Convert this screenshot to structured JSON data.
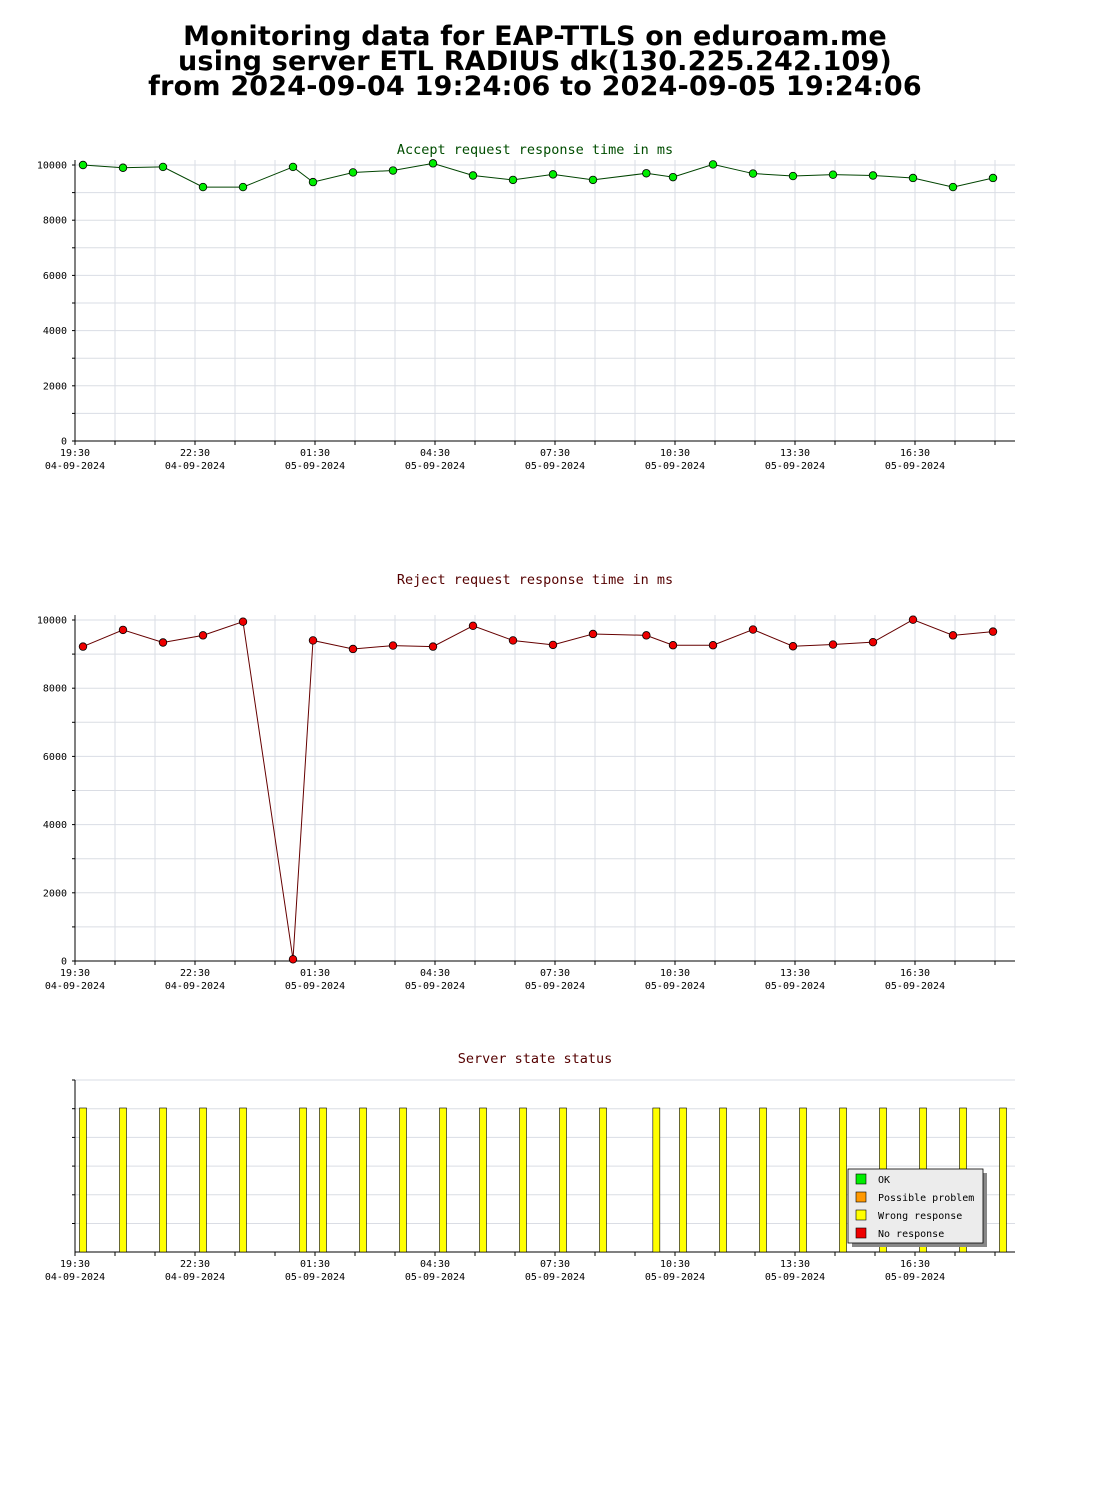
{
  "title": {
    "line1": "Monitoring data for EAP-TTLS on eduroam.me",
    "line2": "using server ETL RADIUS dk(130.225.242.109)",
    "line3": "from 2024-09-04 19:24:06 to 2024-09-05 19:24:06"
  },
  "colors": {
    "accept_line": "#004400",
    "accept_marker": "#00ee00",
    "reject_line": "#660000",
    "reject_marker": "#ee0000",
    "bar": "#ffff00",
    "title_green": "#004d00",
    "title_red": "#550000"
  },
  "chart_data": [
    {
      "type": "line",
      "title": "Accept request response time in ms",
      "ylim": [
        0,
        10000
      ],
      "yticks": [
        "0",
        "2000",
        "4000",
        "6000",
        "8000",
        "10000"
      ],
      "x_ticks": [
        {
          "time": "19:30",
          "date": "04-09-2024"
        },
        {
          "time": "22:30",
          "date": "04-09-2024"
        },
        {
          "time": "01:30",
          "date": "05-09-2024"
        },
        {
          "time": "04:30",
          "date": "05-09-2024"
        },
        {
          "time": "07:30",
          "date": "05-09-2024"
        },
        {
          "time": "10:30",
          "date": "05-09-2024"
        },
        {
          "time": "13:30",
          "date": "05-09-2024"
        },
        {
          "time": "16:30",
          "date": "05-09-2024"
        }
      ],
      "x": [
        "2024-09-04 19:42",
        "2024-09-04 20:42",
        "2024-09-04 21:42",
        "2024-09-04 22:42",
        "2024-09-04 23:42",
        "2024-09-05 00:57",
        "2024-09-05 01:27",
        "2024-09-05 02:27",
        "2024-09-05 03:27",
        "2024-09-05 04:27",
        "2024-09-05 05:27",
        "2024-09-05 06:27",
        "2024-09-05 07:27",
        "2024-09-05 08:27",
        "2024-09-05 09:47",
        "2024-09-05 10:27",
        "2024-09-05 11:27",
        "2024-09-05 12:27",
        "2024-09-05 13:27",
        "2024-09-05 14:27",
        "2024-09-05 15:27",
        "2024-09-05 16:27",
        "2024-09-05 17:27",
        "2024-09-05 18:27"
      ],
      "values": [
        10000,
        9900,
        9930,
        9200,
        9200,
        9930,
        9380,
        9730,
        9800,
        10060,
        9620,
        9460,
        9660,
        9460,
        9700,
        9560,
        10020,
        9690,
        9600,
        9650,
        9620,
        9530,
        9200,
        9530
      ]
    },
    {
      "type": "line",
      "title": "Reject request response time in ms",
      "ylim": [
        0,
        10000
      ],
      "yticks": [
        "0",
        "2000",
        "4000",
        "6000",
        "8000",
        "10000"
      ],
      "x_ticks": [
        {
          "time": "19:30",
          "date": "04-09-2024"
        },
        {
          "time": "22:30",
          "date": "04-09-2024"
        },
        {
          "time": "01:30",
          "date": "05-09-2024"
        },
        {
          "time": "04:30",
          "date": "05-09-2024"
        },
        {
          "time": "07:30",
          "date": "05-09-2024"
        },
        {
          "time": "10:30",
          "date": "05-09-2024"
        },
        {
          "time": "13:30",
          "date": "05-09-2024"
        },
        {
          "time": "16:30",
          "date": "05-09-2024"
        }
      ],
      "x": [
        "2024-09-04 19:42",
        "2024-09-04 20:42",
        "2024-09-04 21:42",
        "2024-09-04 22:42",
        "2024-09-04 23:42",
        "2024-09-05 00:57",
        "2024-09-05 01:27",
        "2024-09-05 02:27",
        "2024-09-05 03:27",
        "2024-09-05 04:27",
        "2024-09-05 05:27",
        "2024-09-05 06:27",
        "2024-09-05 07:27",
        "2024-09-05 08:27",
        "2024-09-05 09:47",
        "2024-09-05 10:27",
        "2024-09-05 11:27",
        "2024-09-05 12:27",
        "2024-09-05 13:27",
        "2024-09-05 14:27",
        "2024-09-05 15:27",
        "2024-09-05 16:27",
        "2024-09-05 17:27",
        "2024-09-05 18:27"
      ],
      "values": [
        9220,
        9710,
        9340,
        9550,
        9950,
        50,
        9400,
        9150,
        9250,
        9220,
        9830,
        9400,
        9270,
        9590,
        9550,
        9260,
        9260,
        9720,
        9230,
        9280,
        9350,
        10010,
        9550,
        9660
      ]
    },
    {
      "type": "bar",
      "title": "Server state status",
      "x_ticks": [
        {
          "time": "19:30",
          "date": "04-09-2024"
        },
        {
          "time": "22:30",
          "date": "04-09-2024"
        },
        {
          "time": "01:30",
          "date": "05-09-2024"
        },
        {
          "time": "04:30",
          "date": "05-09-2024"
        },
        {
          "time": "07:30",
          "date": "05-09-2024"
        },
        {
          "time": "10:30",
          "date": "05-09-2024"
        },
        {
          "time": "13:30",
          "date": "05-09-2024"
        },
        {
          "time": "16:30",
          "date": "05-09-2024"
        }
      ],
      "x": [
        "2024-09-04 19:42",
        "2024-09-04 20:42",
        "2024-09-04 21:42",
        "2024-09-04 22:42",
        "2024-09-04 23:42",
        "2024-09-05 01:12",
        "2024-09-05 01:42",
        "2024-09-05 02:42",
        "2024-09-05 03:42",
        "2024-09-05 04:42",
        "2024-09-05 05:42",
        "2024-09-05 06:42",
        "2024-09-05 07:42",
        "2024-09-05 08:42",
        "2024-09-05 10:02",
        "2024-09-05 10:42",
        "2024-09-05 11:42",
        "2024-09-05 12:42",
        "2024-09-05 13:42",
        "2024-09-05 14:42",
        "2024-09-05 15:42",
        "2024-09-05 16:42",
        "2024-09-05 17:42",
        "2024-09-05 18:42"
      ],
      "states": [
        "Wrong response",
        "Wrong response",
        "Wrong response",
        "Wrong response",
        "Wrong response",
        "Wrong response",
        "Wrong response",
        "Wrong response",
        "Wrong response",
        "Wrong response",
        "Wrong response",
        "Wrong response",
        "Wrong response",
        "Wrong response",
        "Wrong response",
        "Wrong response",
        "Wrong response",
        "Wrong response",
        "Wrong response",
        "Wrong response",
        "Wrong response",
        "Wrong response",
        "Wrong response",
        "Wrong response"
      ],
      "legend_position": "bottom-right",
      "legend": [
        {
          "label": "OK",
          "color": "#00ee00"
        },
        {
          "label": "Possible problem",
          "color": "#ff9900"
        },
        {
          "label": "Wrong response",
          "color": "#ffff00"
        },
        {
          "label": "No response",
          "color": "#ee0000"
        }
      ]
    }
  ]
}
